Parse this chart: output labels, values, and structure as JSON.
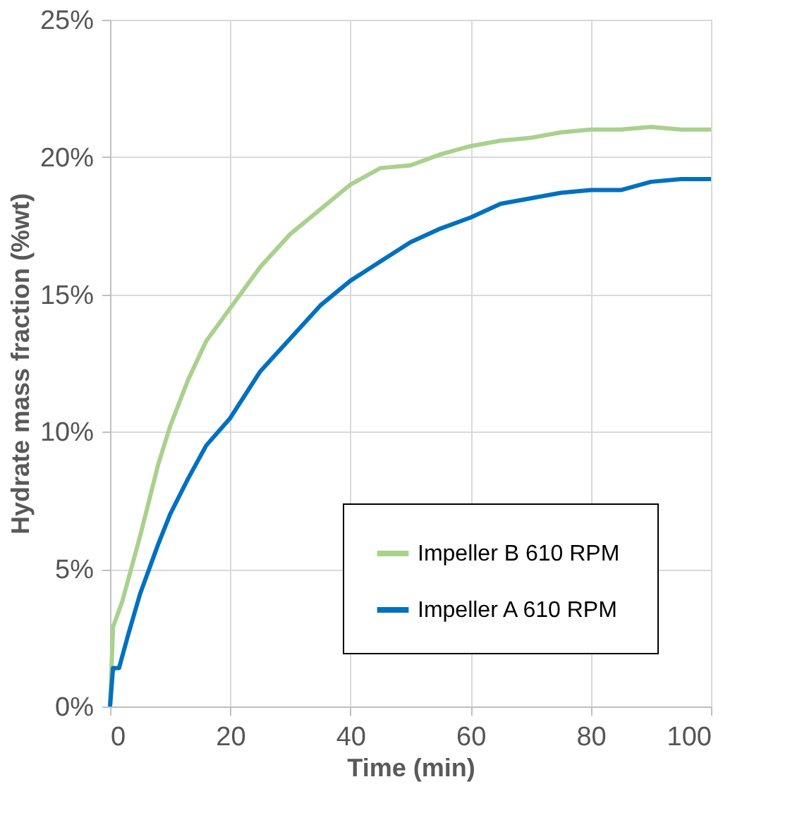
{
  "chart_data": {
    "type": "line",
    "xlabel": "Time (min)",
    "ylabel": "Hydrate mass fraction (%wt)",
    "xlim": [
      0,
      100
    ],
    "xticks": [
      0,
      20,
      40,
      60,
      80,
      100
    ],
    "ylim": [
      0,
      25
    ],
    "yticks": [
      {
        "value": 0,
        "label": "0%"
      },
      {
        "value": 5,
        "label": "5%"
      },
      {
        "value": 10,
        "label": "10%"
      },
      {
        "value": 15,
        "label": "15%"
      },
      {
        "value": 20,
        "label": "20%"
      },
      {
        "value": 25,
        "label": "25%"
      }
    ],
    "grid": true,
    "legend": "bottom right",
    "marker": "none",
    "line_style": "solid",
    "series": [
      {
        "name": "Impeller  B 610 RPM",
        "color": "#a9d18e",
        "x": [
          0,
          0.5,
          2,
          5,
          8,
          10,
          13,
          16,
          18,
          20,
          25,
          30,
          35,
          40,
          45,
          50,
          55,
          60,
          65,
          70,
          75,
          80,
          85,
          90,
          95,
          100
        ],
        "values": [
          0,
          2.9,
          3.8,
          6.2,
          8.8,
          10.2,
          11.9,
          13.3,
          13.9,
          14.5,
          16.0,
          17.2,
          18.1,
          19.0,
          19.6,
          19.7,
          20.1,
          20.4,
          20.6,
          20.7,
          20.9,
          21.0,
          21.0,
          21.1,
          21.0,
          21.0
        ]
      },
      {
        "name": "Impeller  A 610 RPM",
        "color": "#0070c0",
        "x": [
          0,
          0.5,
          1.5,
          3,
          5,
          8,
          10,
          13,
          16,
          20,
          25,
          30,
          35,
          40,
          45,
          50,
          55,
          60,
          65,
          70,
          75,
          80,
          85,
          90,
          95,
          100
        ],
        "values": [
          0,
          1.4,
          1.4,
          2.6,
          4.1,
          5.9,
          7.0,
          8.3,
          9.5,
          10.5,
          12.2,
          13.4,
          14.6,
          15.5,
          16.2,
          16.9,
          17.4,
          17.8,
          18.3,
          18.5,
          18.7,
          18.8,
          18.8,
          19.1,
          19.2,
          19.2
        ]
      }
    ]
  }
}
